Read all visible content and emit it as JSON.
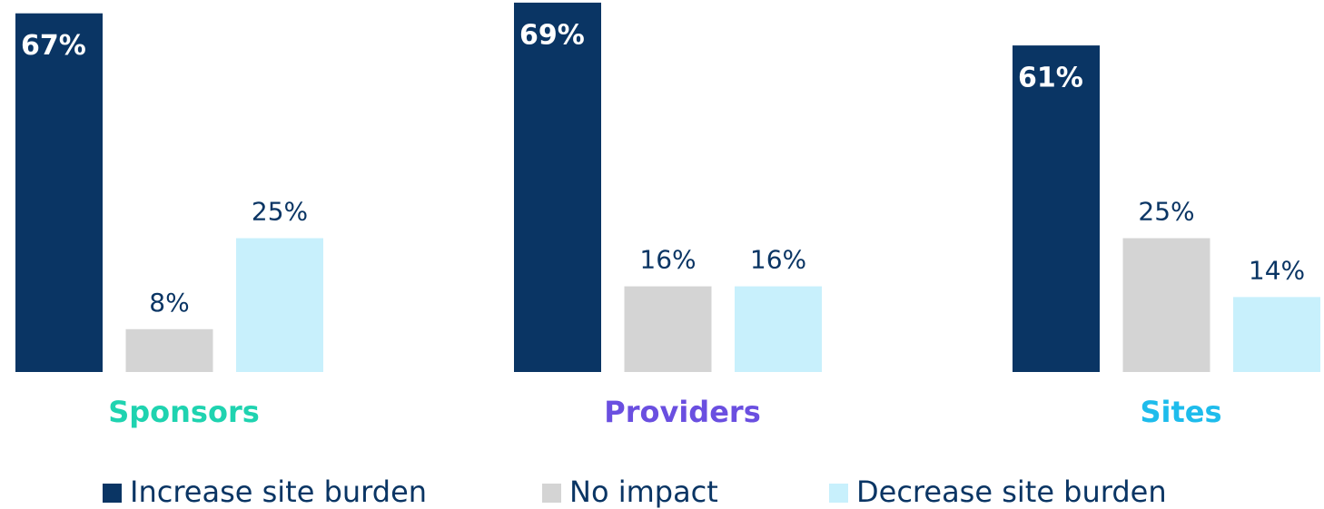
{
  "chart_data": {
    "type": "bar",
    "categories": [
      "Sponsors",
      "Providers",
      "Sites"
    ],
    "category_colors": [
      "#1fd3b0",
      "#6a4fe0",
      "#1ebcec"
    ],
    "series": [
      {
        "name": "Increase site burden",
        "color": "#0a3564",
        "values": [
          67,
          69,
          61
        ],
        "value_labels": [
          "67%",
          "69%",
          "61%"
        ]
      },
      {
        "name": "No impact",
        "color": "#d4d4d4",
        "values": [
          8,
          16,
          25
        ],
        "value_labels": [
          "8%",
          "16%",
          "25%"
        ]
      },
      {
        "name": "Decrease site burden",
        "color": "#c8f0fc",
        "values": [
          25,
          16,
          14
        ],
        "value_labels": [
          "25%",
          "16%",
          "14%"
        ]
      }
    ],
    "ylim": [
      0,
      70
    ]
  }
}
